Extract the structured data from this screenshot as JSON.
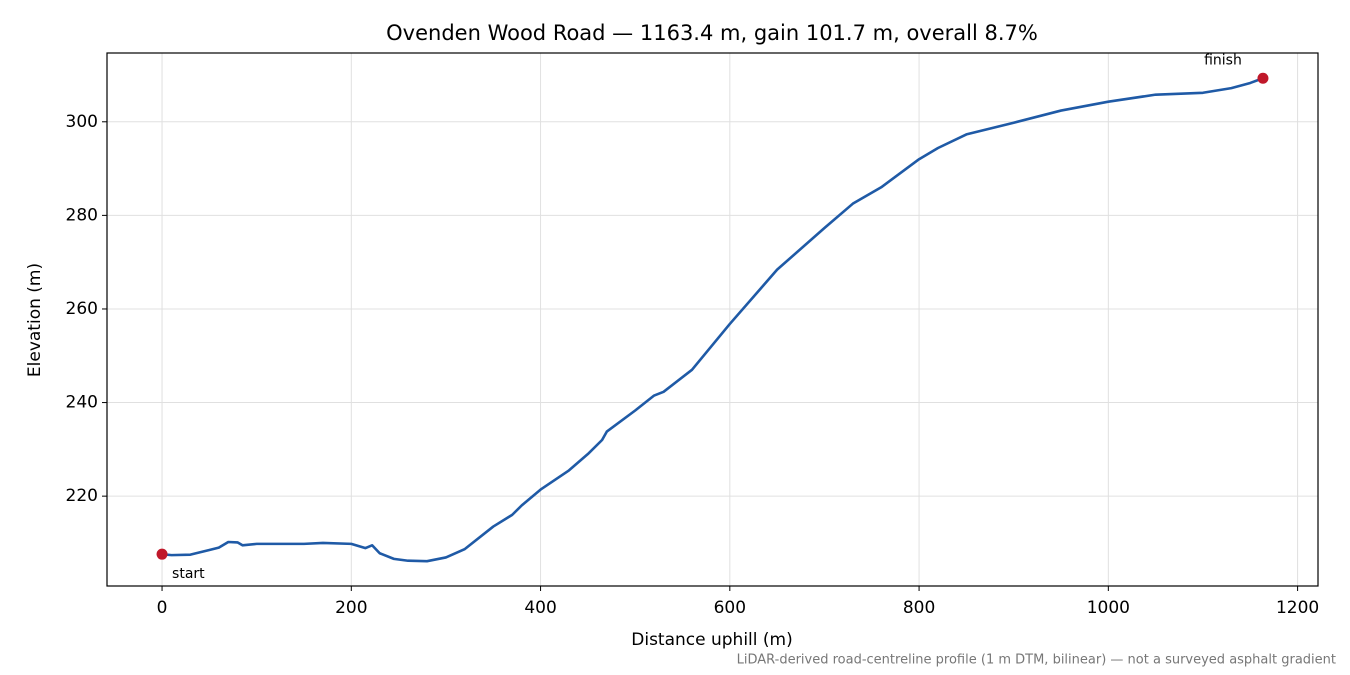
{
  "chart_data": {
    "type": "line",
    "title": "Ovenden Wood Road — 1163.4 m, gain 101.7 m, overall 8.7%",
    "x_label": "Distance uphill (m)",
    "y_label": "Elevation (m)",
    "note": "LiDAR-derived road-centreline profile (1 m DTM, bilinear) — not a surveyed asphalt gradient",
    "start_label": "start",
    "finish_label": "finish",
    "endpoint_color": "#c0182a",
    "x": [
      0,
      10,
      30,
      50,
      60,
      70,
      80,
      85,
      100,
      150,
      170,
      200,
      215,
      222,
      230,
      245,
      260,
      280,
      300,
      320,
      350,
      370,
      380,
      400,
      430,
      450,
      465,
      470,
      500,
      520,
      530,
      560,
      600,
      650,
      700,
      730,
      760,
      800,
      820,
      850,
      900,
      950,
      1000,
      1050,
      1100,
      1130,
      1150,
      1163.4
    ],
    "series": [
      {
        "color": "#1f5aa6",
        "values": [
          207.6,
          207.4,
          207.5,
          208.5,
          209.0,
          210.2,
          210.1,
          209.5,
          209.8,
          209.8,
          210.0,
          209.8,
          208.9,
          209.5,
          207.8,
          206.6,
          206.2,
          206.1,
          206.9,
          208.7,
          213.5,
          216.0,
          218.0,
          221.4,
          225.5,
          229.0,
          232.0,
          233.8,
          238.3,
          241.5,
          242.3,
          247.0,
          256.8,
          268.4,
          277.3,
          282.5,
          286.0,
          292.0,
          294.4,
          297.3,
          299.8,
          302.4,
          304.3,
          305.8,
          306.2,
          307.2,
          308.3,
          309.3
        ]
      }
    ],
    "xlim": [
      -58.17,
      1221.57
    ],
    "ylim": [
      200.8,
      314.7
    ],
    "xticks": [
      0,
      200,
      400,
      600,
      800,
      1000,
      1200
    ],
    "yticks": [
      220,
      240,
      260,
      280,
      300
    ],
    "grid": true
  }
}
